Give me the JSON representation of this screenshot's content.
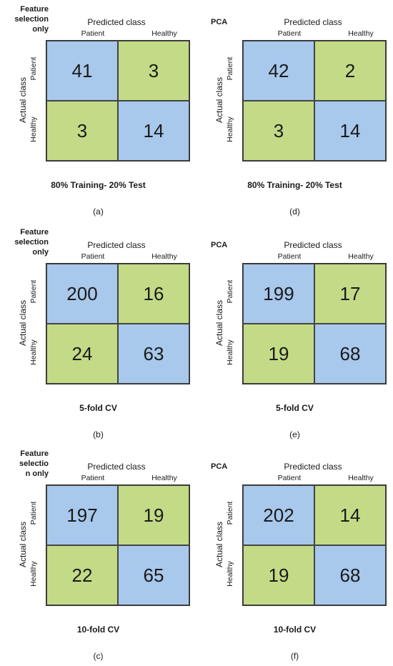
{
  "labels": {
    "predicted": "Predicted class",
    "actual": "Actual class",
    "patient": "Patient",
    "healthy": "Healthy"
  },
  "colors": {
    "correct": "#a8c8ec",
    "incorrect": "#c3db86"
  },
  "panels": [
    {
      "corner": "Feature\nselection\nonly",
      "scheme": "80% Training- 20% Test",
      "sublabel": "(a)",
      "matrix": [
        [
          41,
          3
        ],
        [
          3,
          14
        ]
      ]
    },
    {
      "corner": "PCA",
      "scheme": "80% Training- 20% Test",
      "sublabel": "(d)",
      "matrix": [
        [
          42,
          2
        ],
        [
          3,
          14
        ]
      ]
    },
    {
      "corner": "Feature\nselection\nonly",
      "scheme": "5-fold CV",
      "sublabel": "(b)",
      "matrix": [
        [
          200,
          16
        ],
        [
          24,
          63
        ]
      ]
    },
    {
      "corner": "PCA",
      "scheme": "5-fold CV",
      "sublabel": "(e)",
      "matrix": [
        [
          199,
          17
        ],
        [
          19,
          68
        ]
      ]
    },
    {
      "corner": "Feature\nselectio\nn only",
      "scheme": "10-fold CV",
      "sublabel": "(c)",
      "matrix": [
        [
          197,
          19
        ],
        [
          22,
          65
        ]
      ]
    },
    {
      "corner": "PCA",
      "scheme": "10-fold CV",
      "sublabel": "(f)",
      "matrix": [
        [
          202,
          14
        ],
        [
          19,
          68
        ]
      ]
    }
  ]
}
